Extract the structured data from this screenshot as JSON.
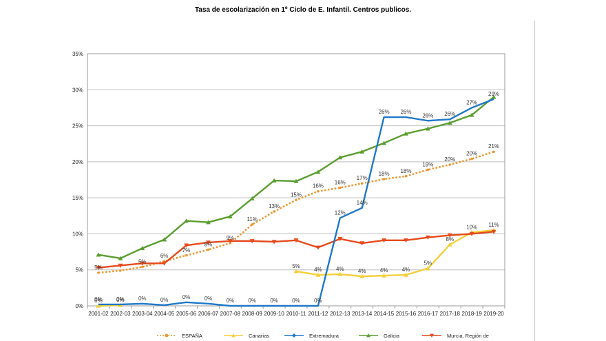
{
  "chart_data": {
    "type": "line",
    "title": "Tasa de escolarización en 1º Ciclo de E. Infantil. Centros publicos.",
    "xlabel": "",
    "ylabel": "",
    "ylim": [
      0,
      35
    ],
    "yticks": [
      "0%",
      "5%",
      "10%",
      "15%",
      "20%",
      "25%",
      "30%",
      "35%"
    ],
    "grid": true,
    "legend_position": "bottom",
    "categories": [
      "2001-02",
      "2002-03",
      "2003-04",
      "2004-05",
      "2005-06",
      "2006-07",
      "2007-08",
      "2008-09",
      "2009-10",
      "2010-11",
      "2011-12",
      "2012-13",
      "2013-14",
      "2014-15",
      "2015-16",
      "2016-17",
      "2017-18",
      "2018-19",
      "2019-20"
    ],
    "series": [
      {
        "name": "ESPAÑA",
        "color": "#f0962e",
        "dash": "dotted",
        "marker": "circle",
        "values": [
          4.6,
          4.9,
          5.4,
          6.2,
          7.0,
          7.8,
          8.7,
          11.3,
          13.1,
          14.7,
          15.9,
          16.4,
          17.0,
          17.6,
          18.0,
          18.9,
          19.6,
          20.4,
          21.4
        ],
        "labels": [
          "5%",
          "",
          "5%",
          "6%",
          "7%",
          "8%",
          "9%",
          "11%",
          "13%",
          "15%",
          "16%",
          "16%",
          "17%",
          "18%",
          "18%",
          "19%",
          "20%",
          "20%",
          "21%"
        ]
      },
      {
        "name": "Canarias",
        "color": "#f5cf3a",
        "dash": "solid",
        "marker": "triangle",
        "values": [
          0.0,
          0.1,
          null,
          null,
          null,
          null,
          null,
          null,
          null,
          4.8,
          4.3,
          4.4,
          4.1,
          4.2,
          4.3,
          5.2,
          8.5,
          10.2,
          10.5
        ],
        "labels": [
          "0%",
          "0%",
          "",
          "",
          "",
          "",
          "",
          "",
          "",
          "5%",
          "4%",
          "4%",
          "4%",
          "4%",
          "4%",
          "5%",
          "8%",
          "10%",
          "11%"
        ]
      },
      {
        "name": "Extremadura",
        "color": "#1f78c8",
        "dash": "solid",
        "marker": "diamond",
        "values": [
          0.2,
          0.2,
          0.3,
          0.1,
          0.5,
          0.3,
          0.0,
          0.0,
          0.0,
          0.0,
          0.0,
          12.2,
          13.6,
          26.2,
          26.2,
          25.7,
          25.9,
          27.5,
          28.7
        ],
        "labels": [
          "0%",
          "0%",
          "0%",
          "0%",
          "0%",
          "0%",
          "0%",
          "0%",
          "0%",
          "0%",
          "0%",
          "12%",
          "14%",
          "26%",
          "26%",
          "26%",
          "26%",
          "27%",
          "29%"
        ]
      },
      {
        "name": "Galicia",
        "color": "#5a9e2f",
        "dash": "solid",
        "marker": "triangle",
        "values": [
          7.1,
          6.6,
          8.0,
          9.2,
          11.8,
          11.6,
          12.4,
          14.9,
          17.4,
          17.3,
          18.6,
          20.6,
          21.4,
          22.6,
          23.9,
          24.6,
          25.4,
          26.5,
          29.0
        ],
        "labels": []
      },
      {
        "name": "Murcia, Región de",
        "color": "#e64a1c",
        "dash": "solid",
        "marker": "triangle-down",
        "values": [
          5.3,
          5.6,
          5.9,
          5.9,
          8.4,
          8.8,
          9.0,
          9.0,
          8.9,
          9.1,
          8.1,
          9.3,
          8.7,
          9.1,
          9.1,
          9.5,
          9.8,
          10.0,
          10.3
        ],
        "labels": []
      }
    ]
  }
}
